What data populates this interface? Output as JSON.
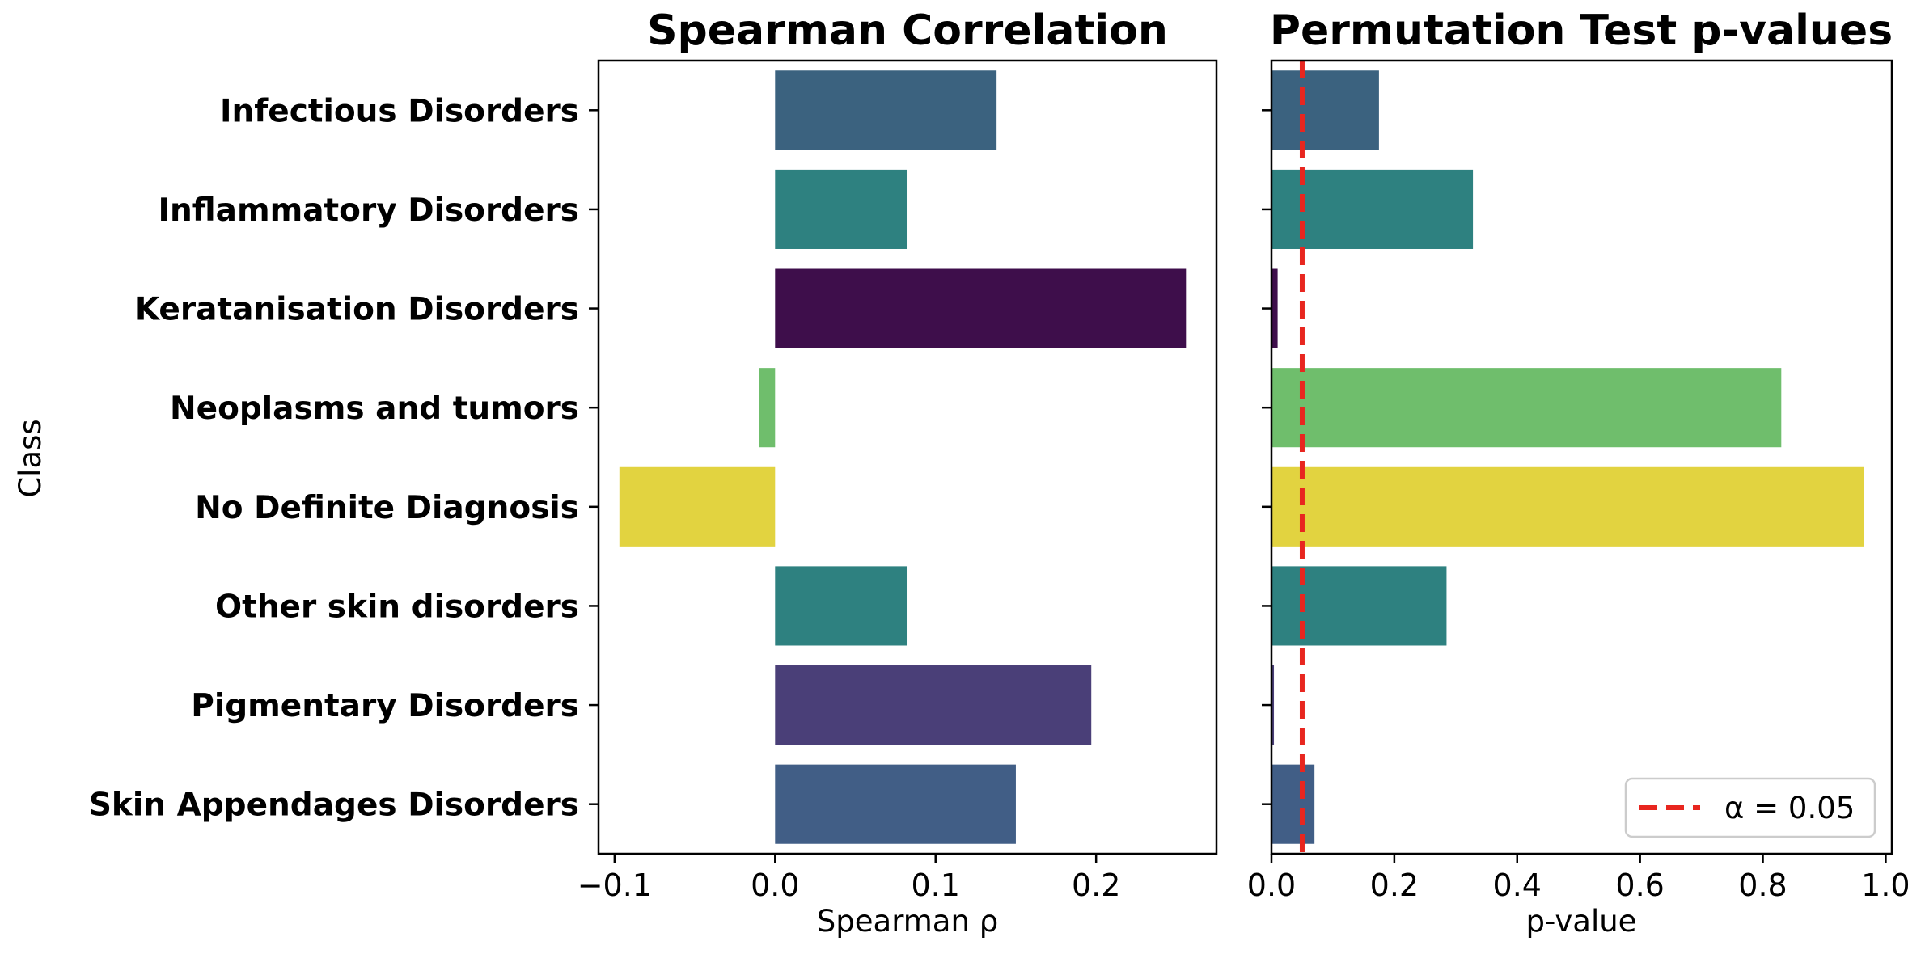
{
  "chart_data": [
    {
      "type": "bar",
      "orientation": "horizontal",
      "title": "Spearman Correlation",
      "xlabel": "Spearman ρ",
      "ylabel": "Class",
      "xlim": [
        -0.11,
        0.275
      ],
      "xticks": [
        -0.1,
        0.0,
        0.1,
        0.2
      ],
      "xtick_labels": [
        "−0.1",
        "0.0",
        "0.1",
        "0.2"
      ],
      "categories": [
        "Infectious Disorders",
        "Inflammatory Disorders",
        "Keratanisation Disorders",
        "Neoplasms and tumors",
        "No Definite Diagnosis",
        "Other skin disorders",
        "Pigmentary Disorders",
        "Skin Appendages Disorders"
      ],
      "values": [
        0.138,
        0.082,
        0.256,
        -0.01,
        -0.097,
        0.082,
        0.197,
        0.15
      ],
      "colors": [
        "#3b627f",
        "#2e8180",
        "#3e0e4b",
        "#6fbe6c",
        "#e2d340",
        "#2e8180",
        "#4a3f78",
        "#415e86"
      ],
      "grid": false
    },
    {
      "type": "bar",
      "orientation": "horizontal",
      "title": "Permutation Test p-values",
      "xlabel": "p-value",
      "xlim": [
        0.0,
        1.01
      ],
      "xticks": [
        0.0,
        0.2,
        0.4,
        0.6,
        0.8,
        1.0
      ],
      "xtick_labels": [
        "0.0",
        "0.2",
        "0.4",
        "0.6",
        "0.8",
        "1.0"
      ],
      "categories": [
        "Infectious Disorders",
        "Inflammatory Disorders",
        "Keratanisation Disorders",
        "Neoplasms and tumors",
        "No Definite Diagnosis",
        "Other skin disorders",
        "Pigmentary Disorders",
        "Skin Appendages Disorders"
      ],
      "values": [
        0.175,
        0.328,
        0.01,
        0.83,
        0.965,
        0.285,
        0.004,
        0.07
      ],
      "colors": [
        "#3b627f",
        "#2e8180",
        "#3e0e4b",
        "#6fbe6c",
        "#e2d340",
        "#2e8180",
        "#4a3f78",
        "#415e86"
      ],
      "threshold": {
        "value": 0.05,
        "color": "#e8261f",
        "style": "dashed"
      },
      "legend": {
        "label": "α = 0.05",
        "position": "lower-right"
      },
      "grid": false
    }
  ]
}
